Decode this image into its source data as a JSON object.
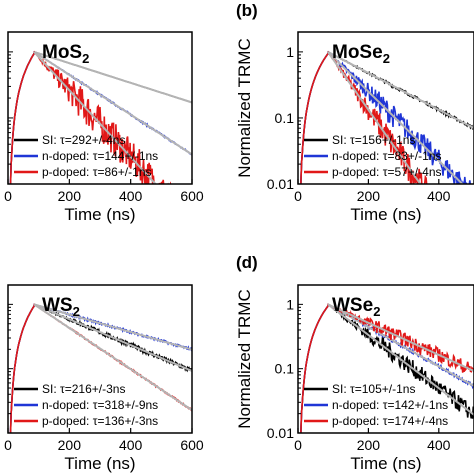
{
  "panel_labels": [
    "(b)",
    "(d)"
  ],
  "ylabel": "Normalized TRMC",
  "xlabel": "Time (ns)",
  "colors": {
    "SI": "#000000",
    "n": "#1f35d6",
    "p": "#e11818",
    "fit": "#b4b4b4"
  },
  "chart_data": [
    {
      "type": "line",
      "title": "MoS",
      "title_sub": "2",
      "xlabel": "Time (ns)",
      "xlim": [
        0,
        600
      ],
      "ylim": [
        0.01,
        2
      ],
      "yscale": "log",
      "xticks": [
        "0",
        "200",
        "400",
        "600"
      ],
      "yticks": [],
      "series": [
        {
          "name": "SI",
          "label": "SI: τ=292+/-4ns",
          "tau": 292,
          "noise": 0
        },
        {
          "name": "n-doped",
          "label": "n-doped: τ=144+/-1ns",
          "tau": 144,
          "noise": 0.03
        },
        {
          "name": "p-doped",
          "label": "p-doped: τ=86+/-1ns",
          "tau": 86,
          "noise": 0.6
        }
      ]
    },
    {
      "type": "line",
      "title": "MoSe",
      "title_sub": "2",
      "xlabel": "Time (ns)",
      "ylabel": "Normalized TRMC",
      "xlim": [
        0,
        500
      ],
      "ylim": [
        0.01,
        2
      ],
      "yscale": "log",
      "xticks": [
        "0",
        "200",
        "400"
      ],
      "yticks": [
        "1",
        "0.1",
        "0.01"
      ],
      "series": [
        {
          "name": "SI",
          "label": "SI: τ=156+/-1ns",
          "tau": 156,
          "noise": 0.05
        },
        {
          "name": "n-doped",
          "label": "n-doped: τ=83+/-1ns",
          "tau": 83,
          "noise": 0.4
        },
        {
          "name": "p-doped",
          "label": "p-doped: τ=57+/-4ns",
          "tau": 57,
          "noise": 0.5
        }
      ]
    },
    {
      "type": "line",
      "title": "WS",
      "title_sub": "2",
      "xlabel": "Time (ns)",
      "xlim": [
        0,
        600
      ],
      "ylim": [
        0.01,
        2
      ],
      "yscale": "log",
      "xticks": [
        "0",
        "200",
        "400",
        "600"
      ],
      "yticks": [],
      "series": [
        {
          "name": "SI",
          "label": "SI: τ=216+/-3ns",
          "tau": 216,
          "noise": 0.08
        },
        {
          "name": "n-doped",
          "label": "n-doped: τ=318+/-9ns",
          "tau": 318,
          "noise": 0.04
        },
        {
          "name": "p-doped",
          "label": "p-doped: τ=136+/-3ns",
          "tau": 136,
          "noise": 0.03
        }
      ]
    },
    {
      "type": "line",
      "title": "WSe",
      "title_sub": "2",
      "xlabel": "Time (ns)",
      "ylabel": "Normalized TRMC",
      "xlim": [
        0,
        500
      ],
      "ylim": [
        0.01,
        2
      ],
      "yscale": "log",
      "xticks": [
        "0",
        "200",
        "400"
      ],
      "yticks": [
        "1",
        "0.1",
        "0.01"
      ],
      "series": [
        {
          "name": "SI",
          "label": "SI: τ=105+/-1ns",
          "tau": 105,
          "noise": 0.3
        },
        {
          "name": "n-doped",
          "label": "n-doped: τ=142+/-1ns",
          "tau": 142,
          "noise": 0.06
        },
        {
          "name": "p-doped",
          "label": "p-doped: τ=174+/-4ns",
          "tau": 174,
          "noise": 0.25
        }
      ]
    }
  ]
}
